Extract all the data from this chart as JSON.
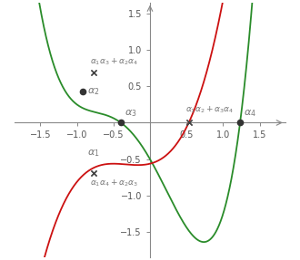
{
  "xlim": [
    -1.85,
    1.85
  ],
  "ylim": [
    -1.85,
    1.65
  ],
  "figsize": [
    3.3,
    2.87
  ],
  "dpi": 100,
  "green_color": "#2a8c2a",
  "red_color": "#cc1111",
  "axis_color": "#888888",
  "dot_color": "#333333",
  "text_color": "#777777",
  "bg_color": "#ffffff",
  "tick_fontsize": 7,
  "label_fontsize": 8.0,
  "xticks": [
    -1.5,
    -1.0,
    -0.5,
    0.5,
    1.0,
    1.5
  ],
  "yticks": [
    -1.5,
    -1.0,
    -0.5,
    0.5,
    1.0,
    1.5
  ]
}
